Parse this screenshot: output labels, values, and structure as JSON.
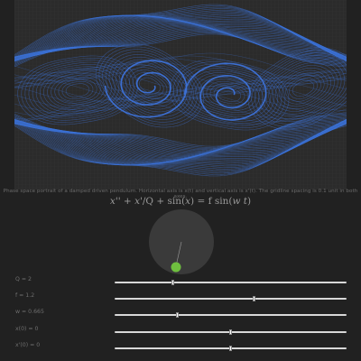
{
  "caption": "Phase space portrait of a damped driven pendulum. Horizontal axis is x(t) and vertical axis is x'(t). The gridline spacing is 0.1 unit in both axes.",
  "equation": {
    "part1": "x",
    "part2": "'' + ",
    "part3": "x",
    "part4": "'/Q + sin(",
    "part5": "x",
    "part6": ") = f sin(",
    "part7": "w t",
    "part8": ")"
  },
  "pendulum": {
    "bob_color": "#6fbf3f",
    "disc_color": "#3a3a3a"
  },
  "plot_colors": {
    "background": "#2b2b2b",
    "grid": "#333333",
    "trajectory": "#3d72d9"
  },
  "sliders": [
    {
      "name": "slider-q",
      "label": "Q = 2",
      "value": 0.25
    },
    {
      "name": "slider-f",
      "label": "f = 1.2",
      "value": 0.6
    },
    {
      "name": "slider-w",
      "label": "w = 0.665",
      "value": 0.27
    },
    {
      "name": "slider-x0",
      "label": "x(0) = 0",
      "value": 0.5
    },
    {
      "name": "slider-v0",
      "label": "x'(0) = 0",
      "value": 0.5
    }
  ]
}
